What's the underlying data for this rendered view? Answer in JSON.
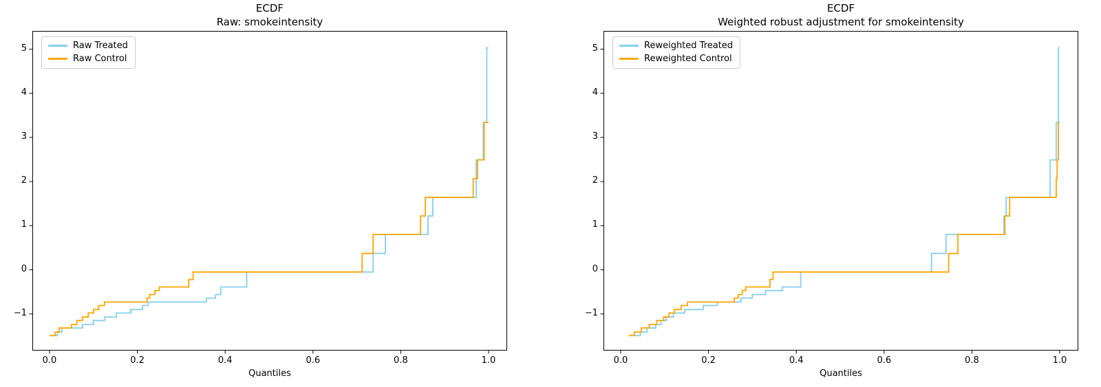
{
  "figure": {
    "background": "#ffffff"
  },
  "chart_data": [
    {
      "type": "line",
      "step": "post",
      "title": "ECDF",
      "subtitle": "Raw: smokeintensity",
      "xlabel": "Quantiles",
      "grid": false,
      "legend_position": "upper left",
      "xlim": [
        -0.039,
        1.042
      ],
      "ylim": [
        -1.83,
        5.41
      ],
      "xticks": [
        {
          "q": 0.0,
          "label": "0.0"
        },
        {
          "q": 0.2,
          "label": "0.2"
        },
        {
          "q": 0.4,
          "label": "0.4"
        },
        {
          "q": 0.6,
          "label": "0.6"
        },
        {
          "q": 0.8,
          "label": "0.8"
        },
        {
          "q": 1.0,
          "label": "1.0"
        }
      ],
      "yticks": [
        {
          "v": 5,
          "label": "5"
        },
        {
          "v": 4,
          "label": "4"
        },
        {
          "v": 3,
          "label": "3"
        },
        {
          "v": 2,
          "label": "2"
        },
        {
          "v": 1,
          "label": "1"
        },
        {
          "v": 0,
          "label": "0"
        },
        {
          "v": -1,
          "label": "−1"
        }
      ],
      "legend": {
        "entries": [
          {
            "label": "Raw Treated",
            "color": "#87CEEB"
          },
          {
            "label": "Raw Control",
            "color": "#FFA500"
          }
        ]
      },
      "series": [
        {
          "name": "Raw Treated",
          "color": "#87CEEB",
          "points": [
            [
              0.004,
              -1.49
            ],
            [
              0.018,
              -1.41
            ],
            [
              0.028,
              -1.32
            ],
            [
              0.075,
              -1.24
            ],
            [
              0.1,
              -1.15
            ],
            [
              0.125,
              -1.07
            ],
            [
              0.152,
              -0.98
            ],
            [
              0.185,
              -0.9
            ],
            [
              0.212,
              -0.81
            ],
            [
              0.224,
              -0.73
            ],
            [
              0.357,
              -0.64
            ],
            [
              0.378,
              -0.56
            ],
            [
              0.39,
              -0.39
            ],
            [
              0.449,
              -0.05
            ],
            [
              0.737,
              0.37
            ],
            [
              0.765,
              0.8
            ],
            [
              0.862,
              1.22
            ],
            [
              0.873,
              1.64
            ],
            [
              0.972,
              2.49
            ],
            [
              0.988,
              3.34
            ],
            [
              0.996,
              5.03
            ]
          ]
        },
        {
          "name": "Raw Control",
          "color": "#FFA500",
          "points": [
            [
              0.0,
              -1.49
            ],
            [
              0.013,
              -1.41
            ],
            [
              0.022,
              -1.32
            ],
            [
              0.05,
              -1.24
            ],
            [
              0.062,
              -1.15
            ],
            [
              0.075,
              -1.07
            ],
            [
              0.088,
              -0.98
            ],
            [
              0.1,
              -0.9
            ],
            [
              0.112,
              -0.81
            ],
            [
              0.125,
              -0.73
            ],
            [
              0.222,
              -0.64
            ],
            [
              0.228,
              -0.56
            ],
            [
              0.24,
              -0.47
            ],
            [
              0.25,
              -0.39
            ],
            [
              0.317,
              -0.22
            ],
            [
              0.327,
              -0.05
            ],
            [
              0.712,
              0.37
            ],
            [
              0.737,
              0.8
            ],
            [
              0.845,
              1.22
            ],
            [
              0.856,
              1.64
            ],
            [
              0.965,
              2.07
            ],
            [
              0.975,
              2.49
            ],
            [
              0.99,
              3.34
            ]
          ]
        }
      ]
    },
    {
      "type": "line",
      "step": "post",
      "title": "ECDF",
      "subtitle": "Weighted robust adjustment for smokeintensity",
      "xlabel": "Quantiles",
      "grid": false,
      "legend_position": "upper left",
      "xlim": [
        -0.039,
        1.042
      ],
      "ylim": [
        -1.83,
        5.41
      ],
      "xticks": [
        {
          "q": 0.0,
          "label": "0.0"
        },
        {
          "q": 0.2,
          "label": "0.2"
        },
        {
          "q": 0.4,
          "label": "0.4"
        },
        {
          "q": 0.6,
          "label": "0.6"
        },
        {
          "q": 0.8,
          "label": "0.8"
        },
        {
          "q": 1.0,
          "label": "1.0"
        }
      ],
      "yticks": [
        {
          "v": 5,
          "label": "5"
        },
        {
          "v": 4,
          "label": "4"
        },
        {
          "v": 3,
          "label": "3"
        },
        {
          "v": 2,
          "label": "2"
        },
        {
          "v": 1,
          "label": "1"
        },
        {
          "v": 0,
          "label": "0"
        },
        {
          "v": -1,
          "label": "−1"
        }
      ],
      "legend": {
        "entries": [
          {
            "label": "Reweighted Treated",
            "color": "#87CEEB"
          },
          {
            "label": "Reweighted Control",
            "color": "#FFA500"
          }
        ]
      },
      "series": [
        {
          "name": "Reweighted Treated",
          "color": "#87CEEB",
          "points": [
            [
              0.029,
              -1.49
            ],
            [
              0.045,
              -1.41
            ],
            [
              0.06,
              -1.32
            ],
            [
              0.08,
              -1.24
            ],
            [
              0.092,
              -1.15
            ],
            [
              0.104,
              -1.07
            ],
            [
              0.12,
              -0.98
            ],
            [
              0.146,
              -0.9
            ],
            [
              0.188,
              -0.81
            ],
            [
              0.22,
              -0.73
            ],
            [
              0.274,
              -0.64
            ],
            [
              0.3,
              -0.56
            ],
            [
              0.33,
              -0.47
            ],
            [
              0.368,
              -0.39
            ],
            [
              0.41,
              -0.05
            ],
            [
              0.708,
              0.37
            ],
            [
              0.741,
              0.8
            ],
            [
              0.873,
              1.22
            ],
            [
              0.878,
              1.64
            ],
            [
              0.978,
              2.49
            ],
            [
              0.992,
              3.34
            ],
            [
              0.997,
              5.03
            ]
          ]
        },
        {
          "name": "Reweighted Control",
          "color": "#FFA500",
          "points": [
            [
              0.018,
              -1.49
            ],
            [
              0.031,
              -1.41
            ],
            [
              0.047,
              -1.32
            ],
            [
              0.065,
              -1.24
            ],
            [
              0.082,
              -1.15
            ],
            [
              0.098,
              -1.07
            ],
            [
              0.11,
              -0.98
            ],
            [
              0.122,
              -0.9
            ],
            [
              0.138,
              -0.81
            ],
            [
              0.152,
              -0.73
            ],
            [
              0.259,
              -0.64
            ],
            [
              0.268,
              -0.56
            ],
            [
              0.277,
              -0.47
            ],
            [
              0.285,
              -0.39
            ],
            [
              0.34,
              -0.22
            ],
            [
              0.347,
              -0.05
            ],
            [
              0.747,
              0.37
            ],
            [
              0.768,
              0.8
            ],
            [
              0.875,
              1.22
            ],
            [
              0.886,
              1.64
            ],
            [
              0.992,
              2.07
            ],
            [
              0.994,
              2.49
            ],
            [
              0.997,
              3.34
            ]
          ]
        }
      ]
    }
  ]
}
